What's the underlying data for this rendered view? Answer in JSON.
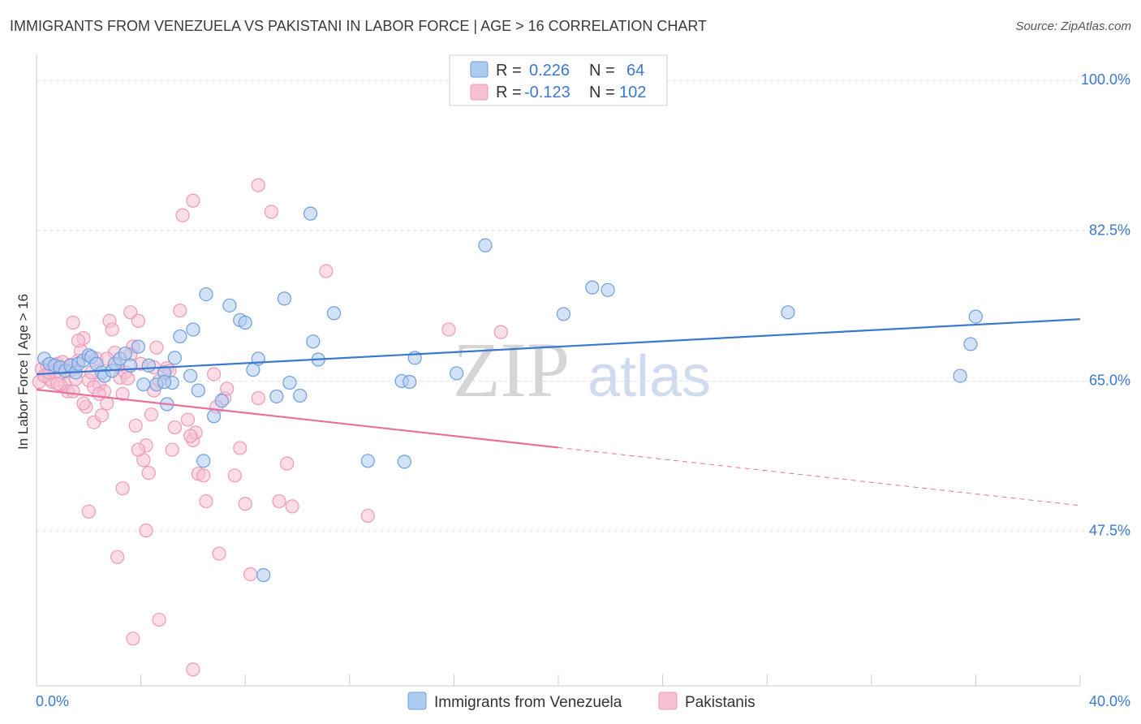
{
  "title": "IMMIGRANTS FROM VENEZUELA VS PAKISTANI IN LABOR FORCE | AGE > 16 CORRELATION CHART",
  "source": "Source: ZipAtlas.com",
  "watermark": {
    "zip": "ZIP",
    "atlas": "atlas"
  },
  "colors": {
    "blue": "#3b78d2",
    "blue_fill": "#aecbf0",
    "blue_stroke": "#6d9ee0",
    "pink": "#e8709a",
    "pink_fill": "#f6c1d3",
    "pink_stroke": "#ef98b7",
    "grid": "#dddddd",
    "axis_text": "#3b78d2"
  },
  "legend": {
    "rows": [
      {
        "r_label": "R =",
        "r_value": "0.226",
        "n_label": "N =",
        "n_value": "64"
      },
      {
        "r_label": "R =",
        "r_value": "-0.123",
        "n_label": "N =",
        "n_value": "102"
      }
    ]
  },
  "chart_data": {
    "type": "scatter",
    "xlabel": "",
    "ylabel": "In Labor Force | Age > 16",
    "xlim": [
      0,
      40
    ],
    "ylim": [
      29.5,
      102
    ],
    "x_tick_labels": [
      {
        "value": 0,
        "label": "0.0%"
      },
      {
        "value": 40,
        "label": "40.0%"
      }
    ],
    "y_tick_labels": [
      {
        "value": 100,
        "label": "100.0%"
      },
      {
        "value": 82.5,
        "label": "82.5%"
      },
      {
        "value": 65,
        "label": "65.0%"
      },
      {
        "value": 47.5,
        "label": "47.5%"
      }
    ],
    "series": [
      {
        "name": "Immigrants from Venezuela",
        "color": "blue",
        "trend": {
          "x0": 0,
          "y0": 65.8,
          "x1": 40,
          "y1": 72.2,
          "dashed_from": null
        },
        "points": [
          [
            0.3,
            67.6
          ],
          [
            0.5,
            67.0
          ],
          [
            0.7,
            66.8
          ],
          [
            0.9,
            66.6
          ],
          [
            1.1,
            66.2
          ],
          [
            1.3,
            66.8
          ],
          [
            1.5,
            66.0
          ],
          [
            1.6,
            67.0
          ],
          [
            1.8,
            67.4
          ],
          [
            2.0,
            68.0
          ],
          [
            2.1,
            67.8
          ],
          [
            2.3,
            67.0
          ],
          [
            2.5,
            66.0
          ],
          [
            2.6,
            65.6
          ],
          [
            2.9,
            66.2
          ],
          [
            3.0,
            67.0
          ],
          [
            3.2,
            67.6
          ],
          [
            3.4,
            68.2
          ],
          [
            3.6,
            66.8
          ],
          [
            3.9,
            69.0
          ],
          [
            4.1,
            64.6
          ],
          [
            4.3,
            66.8
          ],
          [
            4.6,
            64.6
          ],
          [
            4.9,
            66.0
          ],
          [
            5.0,
            62.3
          ],
          [
            5.2,
            64.8
          ],
          [
            5.3,
            67.7
          ],
          [
            5.5,
            70.2
          ],
          [
            5.9,
            65.6
          ],
          [
            6.0,
            71.0
          ],
          [
            6.2,
            63.9
          ],
          [
            6.4,
            55.7
          ],
          [
            6.5,
            75.1
          ],
          [
            6.8,
            60.9
          ],
          [
            7.1,
            62.7
          ],
          [
            7.4,
            73.8
          ],
          [
            7.8,
            72.1
          ],
          [
            8.0,
            71.8
          ],
          [
            8.3,
            66.3
          ],
          [
            8.5,
            67.6
          ],
          [
            8.7,
            42.4
          ],
          [
            9.2,
            63.2
          ],
          [
            9.5,
            74.6
          ],
          [
            9.7,
            64.8
          ],
          [
            10.1,
            63.3
          ],
          [
            10.5,
            84.5
          ],
          [
            10.6,
            69.6
          ],
          [
            10.8,
            67.5
          ],
          [
            11.4,
            72.9
          ],
          [
            12.7,
            55.7
          ],
          [
            14.0,
            65.0
          ],
          [
            14.3,
            64.9
          ],
          [
            14.5,
            67.7
          ],
          [
            16.1,
            65.9
          ],
          [
            17.2,
            80.8
          ],
          [
            20.2,
            72.8
          ],
          [
            21.3,
            75.9
          ],
          [
            21.9,
            75.6
          ],
          [
            28.8,
            73.0
          ],
          [
            35.4,
            65.6
          ],
          [
            35.8,
            69.3
          ],
          [
            36.0,
            72.5
          ],
          [
            4.9,
            64.9
          ],
          [
            14.1,
            55.6
          ]
        ]
      },
      {
        "name": "Pakistanis",
        "color": "pink",
        "trend": {
          "x0": 0,
          "y0": 64.0,
          "x1": 40,
          "y1": 50.5,
          "dashed_from": 20.0
        },
        "points": [
          [
            0.1,
            64.9
          ],
          [
            0.2,
            66.4
          ],
          [
            0.3,
            65.6
          ],
          [
            0.4,
            66.8
          ],
          [
            0.5,
            65.2
          ],
          [
            0.6,
            64.9
          ],
          [
            0.7,
            66.0
          ],
          [
            0.8,
            67.0
          ],
          [
            0.9,
            65.8
          ],
          [
            1.0,
            66.5
          ],
          [
            1.1,
            64.6
          ],
          [
            1.2,
            63.8
          ],
          [
            1.3,
            66.9
          ],
          [
            1.4,
            63.8
          ],
          [
            1.5,
            65.2
          ],
          [
            1.6,
            67.4
          ],
          [
            1.7,
            68.5
          ],
          [
            1.8,
            70.0
          ],
          [
            1.9,
            62.0
          ],
          [
            2.0,
            65.1
          ],
          [
            2.1,
            66.0
          ],
          [
            2.2,
            60.2
          ],
          [
            2.3,
            67.6
          ],
          [
            2.4,
            64.6
          ],
          [
            2.5,
            61.0
          ],
          [
            2.6,
            63.8
          ],
          [
            2.7,
            62.4
          ],
          [
            2.8,
            72.0
          ],
          [
            2.9,
            71.0
          ],
          [
            3.0,
            68.3
          ],
          [
            3.1,
            66.8
          ],
          [
            3.2,
            65.4
          ],
          [
            3.3,
            63.5
          ],
          [
            3.4,
            66.0
          ],
          [
            3.5,
            65.3
          ],
          [
            3.6,
            73.0
          ],
          [
            3.7,
            69.0
          ],
          [
            3.8,
            59.8
          ],
          [
            3.9,
            72.0
          ],
          [
            4.0,
            67.0
          ],
          [
            4.1,
            55.8
          ],
          [
            4.2,
            57.5
          ],
          [
            4.3,
            54.3
          ],
          [
            4.4,
            61.1
          ],
          [
            4.5,
            66.6
          ],
          [
            4.6,
            68.9
          ],
          [
            4.7,
            65.0
          ],
          [
            5.0,
            66.5
          ],
          [
            5.2,
            57.0
          ],
          [
            5.3,
            59.6
          ],
          [
            5.5,
            73.2
          ],
          [
            5.6,
            84.3
          ],
          [
            5.8,
            60.5
          ],
          [
            6.0,
            58.1
          ],
          [
            6.1,
            59.0
          ],
          [
            6.2,
            54.2
          ],
          [
            6.4,
            54.0
          ],
          [
            6.5,
            51.0
          ],
          [
            6.8,
            65.8
          ],
          [
            7.0,
            44.9
          ],
          [
            7.2,
            63.0
          ],
          [
            7.6,
            54.0
          ],
          [
            7.8,
            57.2
          ],
          [
            8.0,
            50.7
          ],
          [
            8.2,
            42.5
          ],
          [
            8.5,
            63.0
          ],
          [
            9.0,
            84.7
          ],
          [
            9.3,
            51.0
          ],
          [
            9.6,
            55.4
          ],
          [
            9.8,
            50.4
          ],
          [
            11.1,
            77.8
          ],
          [
            12.7,
            49.3
          ],
          [
            15.8,
            71.0
          ],
          [
            17.8,
            70.7
          ],
          [
            8.5,
            87.8
          ],
          [
            6.0,
            86.0
          ],
          [
            3.1,
            44.5
          ],
          [
            3.7,
            35.0
          ],
          [
            4.7,
            37.2
          ],
          [
            6.0,
            31.4
          ],
          [
            2.0,
            49.8
          ],
          [
            3.3,
            52.5
          ],
          [
            4.2,
            47.6
          ],
          [
            1.4,
            71.8
          ],
          [
            1.6,
            69.7
          ],
          [
            2.7,
            67.6
          ],
          [
            0.3,
            65.6
          ],
          [
            0.9,
            64.6
          ],
          [
            1.3,
            66.2
          ],
          [
            2.2,
            64.3
          ],
          [
            3.6,
            68.1
          ],
          [
            4.5,
            63.9
          ],
          [
            5.1,
            66.2
          ],
          [
            5.9,
            58.6
          ],
          [
            6.9,
            62.0
          ],
          [
            7.3,
            64.1
          ],
          [
            0.5,
            66.0
          ],
          [
            0.8,
            64.7
          ],
          [
            1.0,
            67.2
          ],
          [
            1.8,
            62.4
          ],
          [
            2.4,
            63.5
          ],
          [
            3.9,
            57.0
          ]
        ]
      }
    ]
  },
  "bottom_legend": [
    {
      "label": "Immigrants from Venezuela",
      "color": "blue"
    },
    {
      "label": "Pakistanis",
      "color": "pink"
    }
  ]
}
